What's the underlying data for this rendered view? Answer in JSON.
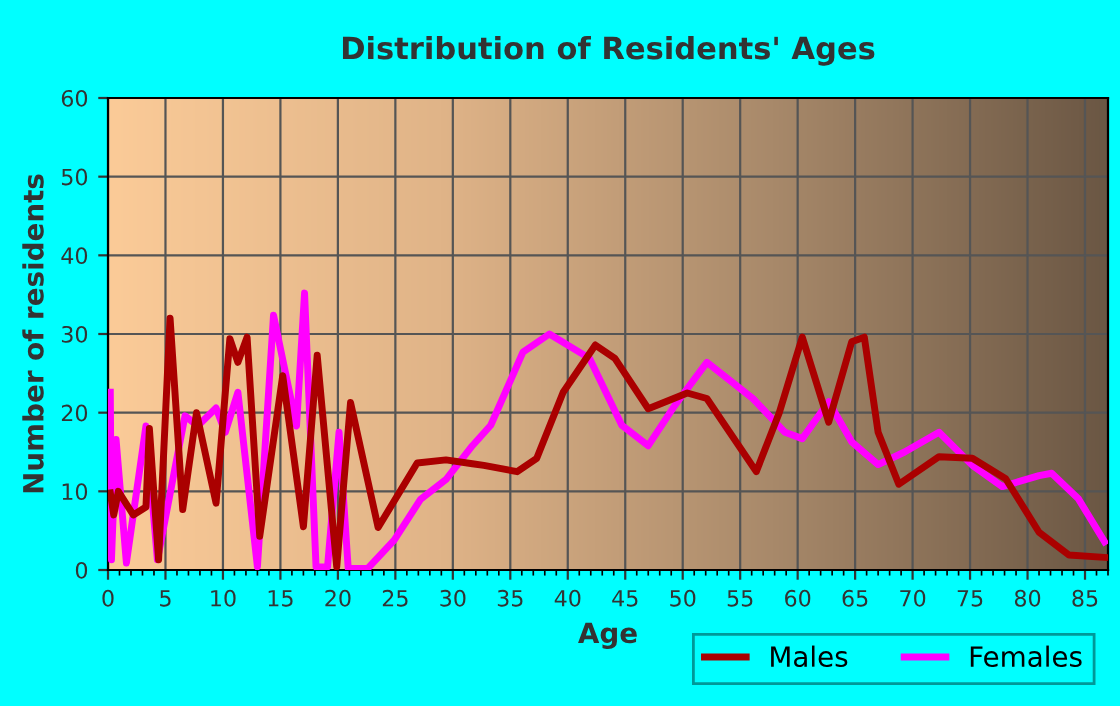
{
  "chart_data": {
    "type": "line",
    "title": "Distribution of Residents' Ages",
    "xlabel": "Age",
    "ylabel": "Number of residents",
    "xlim": [
      0,
      87
    ],
    "xticks": [
      0,
      5,
      10,
      15,
      20,
      25,
      30,
      35,
      40,
      45,
      50,
      55,
      60,
      65,
      70,
      75,
      80,
      85
    ],
    "ylim": [
      0,
      60
    ],
    "yticks": [
      0,
      10,
      20,
      30,
      40,
      50,
      60
    ],
    "grid": true,
    "legend": "bottom right",
    "marker": "none",
    "line_style": "solid",
    "series": [
      {
        "name": "Males",
        "color": "#aa0000",
        "x": [
          0.2,
          0.5,
          0.9,
          2.2,
          3.3,
          3.6,
          4.4,
          5.4,
          6.5,
          7.7,
          9.4,
          10.6,
          11.3,
          12.1,
          13.2,
          15.2,
          17,
          18.2,
          19.9,
          21.1,
          23.5,
          26.9,
          29.4,
          31.7,
          32.7,
          35.6,
          37.3,
          39.6,
          42.4,
          44.1,
          47,
          50.4,
          52.1,
          56.4,
          58.4,
          60.4,
          62.7,
          64.7,
          65.8,
          67,
          68.8,
          72.3,
          75.2,
          78.1,
          81,
          83.6,
          86.7
        ],
        "values": [
          9.8,
          7,
          10,
          7,
          8,
          18,
          1.3,
          32,
          7.7,
          20,
          8.5,
          29.4,
          26.4,
          29.6,
          4.3,
          24.7,
          5.5,
          27.3,
          0.4,
          21.3,
          5.4,
          13.6,
          14,
          13.5,
          13.3,
          12.5,
          14.2,
          22.6,
          28.6,
          26.9,
          20.5,
          22.5,
          21.8,
          12.5,
          20,
          29.6,
          18.8,
          29,
          29.6,
          17.5,
          10.9,
          14.4,
          14.2,
          11.6,
          4.8,
          1.9,
          1.6
        ]
      },
      {
        "name": "Females",
        "color": "#ff00ff",
        "x": [
          0.2,
          0.3,
          0.7,
          1.6,
          3.3,
          4.3,
          6.7,
          7.8,
          9.4,
          10.2,
          11.3,
          13,
          14.4,
          16.4,
          17.1,
          18.1,
          19.1,
          20.1,
          20.9,
          22.6,
          24.9,
          27.2,
          29.4,
          31.7,
          33.3,
          36.1,
          38.4,
          41.9,
          44.7,
          47,
          49.3,
          52.1,
          56.1,
          58.9,
          60.4,
          62.7,
          64.7,
          67,
          69.3,
          72.3,
          75.2,
          77.8,
          81,
          82.1,
          84.4,
          86.7
        ],
        "values": [
          22.6,
          1.3,
          16.6,
          0.9,
          18.3,
          1.3,
          19.6,
          18.3,
          20.6,
          17.5,
          22.6,
          0.4,
          32.4,
          18.3,
          35.2,
          0.4,
          0.4,
          17.5,
          0.2,
          0.2,
          3.8,
          9,
          11.5,
          15.8,
          18.4,
          27.7,
          30,
          26.9,
          18.4,
          15.8,
          20.9,
          26.4,
          21.8,
          17.5,
          16.7,
          21.4,
          16.3,
          13.4,
          15,
          17.5,
          13.3,
          10.6,
          12,
          12.3,
          9.1,
          3.6
        ]
      }
    ]
  }
}
